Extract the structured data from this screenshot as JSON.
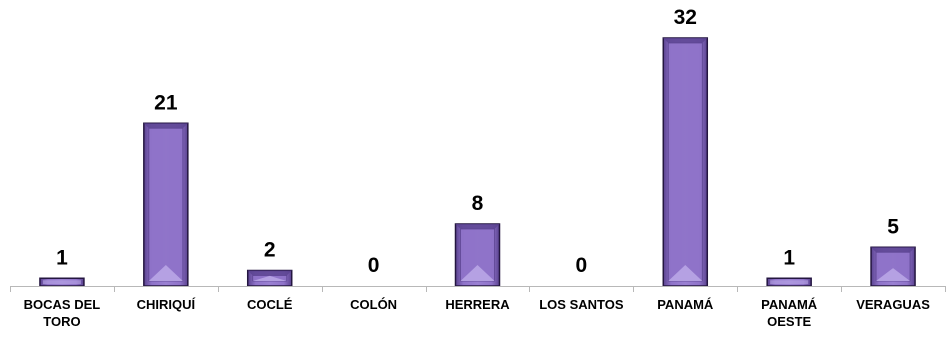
{
  "chart_data": {
    "type": "bar",
    "categories": [
      [
        "BOCAS DEL",
        "TORO"
      ],
      [
        "CHIRIQUÍ"
      ],
      [
        "COCLÉ"
      ],
      [
        "COLÓN"
      ],
      [
        "HERRERA"
      ],
      [
        "LOS SANTOS"
      ],
      [
        "PANAMÁ"
      ],
      [
        "PANAMÁ",
        "OESTE"
      ],
      [
        "VERAGUAS"
      ]
    ],
    "values": [
      1,
      21,
      2,
      0,
      8,
      0,
      32,
      1,
      5
    ],
    "title": "",
    "xlabel": "",
    "ylabel": "",
    "ylim": [
      0,
      32
    ],
    "grid": false,
    "legend": "none",
    "colors": {
      "bar_fill": "#8f73c9",
      "bar_light": "#b9a6e6",
      "bar_dark": "#5b4390",
      "bar_edge": "#241640",
      "axis": "#b8b8b8"
    }
  }
}
